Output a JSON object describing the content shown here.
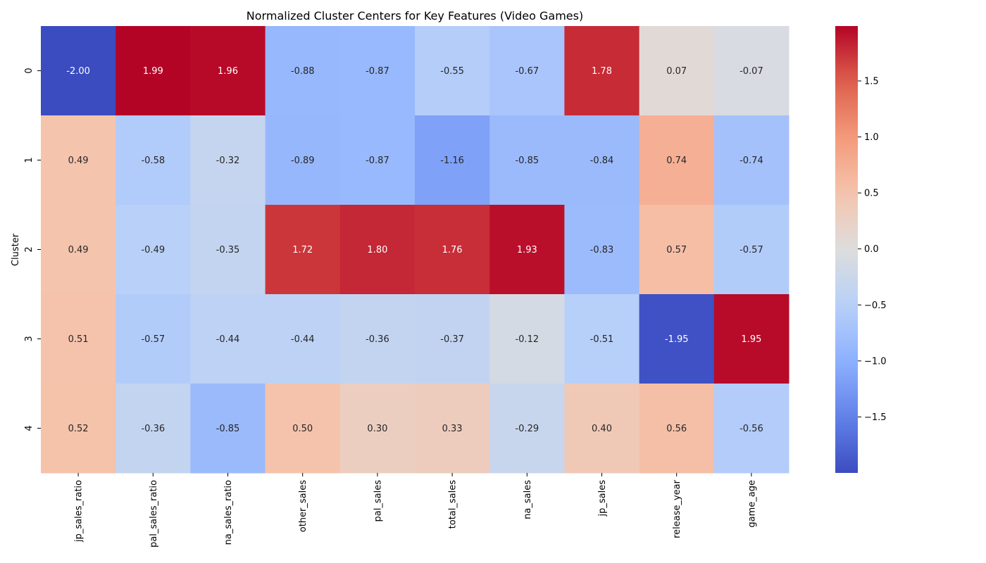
{
  "chart_data": {
    "type": "heatmap",
    "title": "Normalized Cluster Centers for Key Features (Video Games)",
    "xlabel": "",
    "ylabel": "Cluster",
    "colormap": "coolwarm",
    "x_categories": [
      "jp_sales_ratio",
      "pal_sales_ratio",
      "na_sales_ratio",
      "other_sales",
      "pal_sales",
      "total_sales",
      "na_sales",
      "jp_sales",
      "release_year",
      "game_age"
    ],
    "y_categories": [
      "0",
      "1",
      "2",
      "3",
      "4"
    ],
    "values": [
      [
        -2.0,
        1.99,
        1.96,
        -0.88,
        -0.87,
        -0.55,
        -0.67,
        1.78,
        0.07,
        -0.07
      ],
      [
        0.49,
        -0.58,
        -0.32,
        -0.89,
        -0.87,
        -1.16,
        -0.85,
        -0.84,
        0.74,
        -0.74
      ],
      [
        0.49,
        -0.49,
        -0.35,
        1.72,
        1.8,
        1.76,
        1.93,
        -0.83,
        0.57,
        -0.57
      ],
      [
        0.51,
        -0.57,
        -0.44,
        -0.44,
        -0.36,
        -0.37,
        -0.12,
        -0.51,
        -1.95,
        1.95
      ],
      [
        0.52,
        -0.36,
        -0.85,
        0.5,
        0.3,
        0.33,
        -0.29,
        0.4,
        0.56,
        -0.56
      ]
    ],
    "value_labels": [
      [
        "-2.00",
        "1.99",
        "1.96",
        "-0.88",
        "-0.87",
        "-0.55",
        "-0.67",
        "1.78",
        "0.07",
        "-0.07"
      ],
      [
        "0.49",
        "-0.58",
        "-0.32",
        "-0.89",
        "-0.87",
        "-1.16",
        "-0.85",
        "-0.84",
        "0.74",
        "-0.74"
      ],
      [
        "0.49",
        "-0.49",
        "-0.35",
        "1.72",
        "1.80",
        "1.76",
        "1.93",
        "-0.83",
        "0.57",
        "-0.57"
      ],
      [
        "0.51",
        "-0.57",
        "-0.44",
        "-0.44",
        "-0.36",
        "-0.37",
        "-0.12",
        "-0.51",
        "-1.95",
        "1.95"
      ],
      [
        "0.52",
        "-0.36",
        "-0.85",
        "0.50",
        "0.30",
        "0.33",
        "-0.29",
        "0.40",
        "0.56",
        "-0.56"
      ]
    ],
    "colorbar": {
      "vmin": -2.0,
      "vmax": 1.99,
      "ticks": [
        -1.5,
        -1.0,
        -0.5,
        0.0,
        0.5,
        1.0,
        1.5
      ],
      "tick_labels": [
        "−1.5",
        "−1.0",
        "−0.5",
        "0.0",
        "0.5",
        "1.0",
        "1.5"
      ]
    },
    "grid": false,
    "legend": "colorbar-right"
  }
}
